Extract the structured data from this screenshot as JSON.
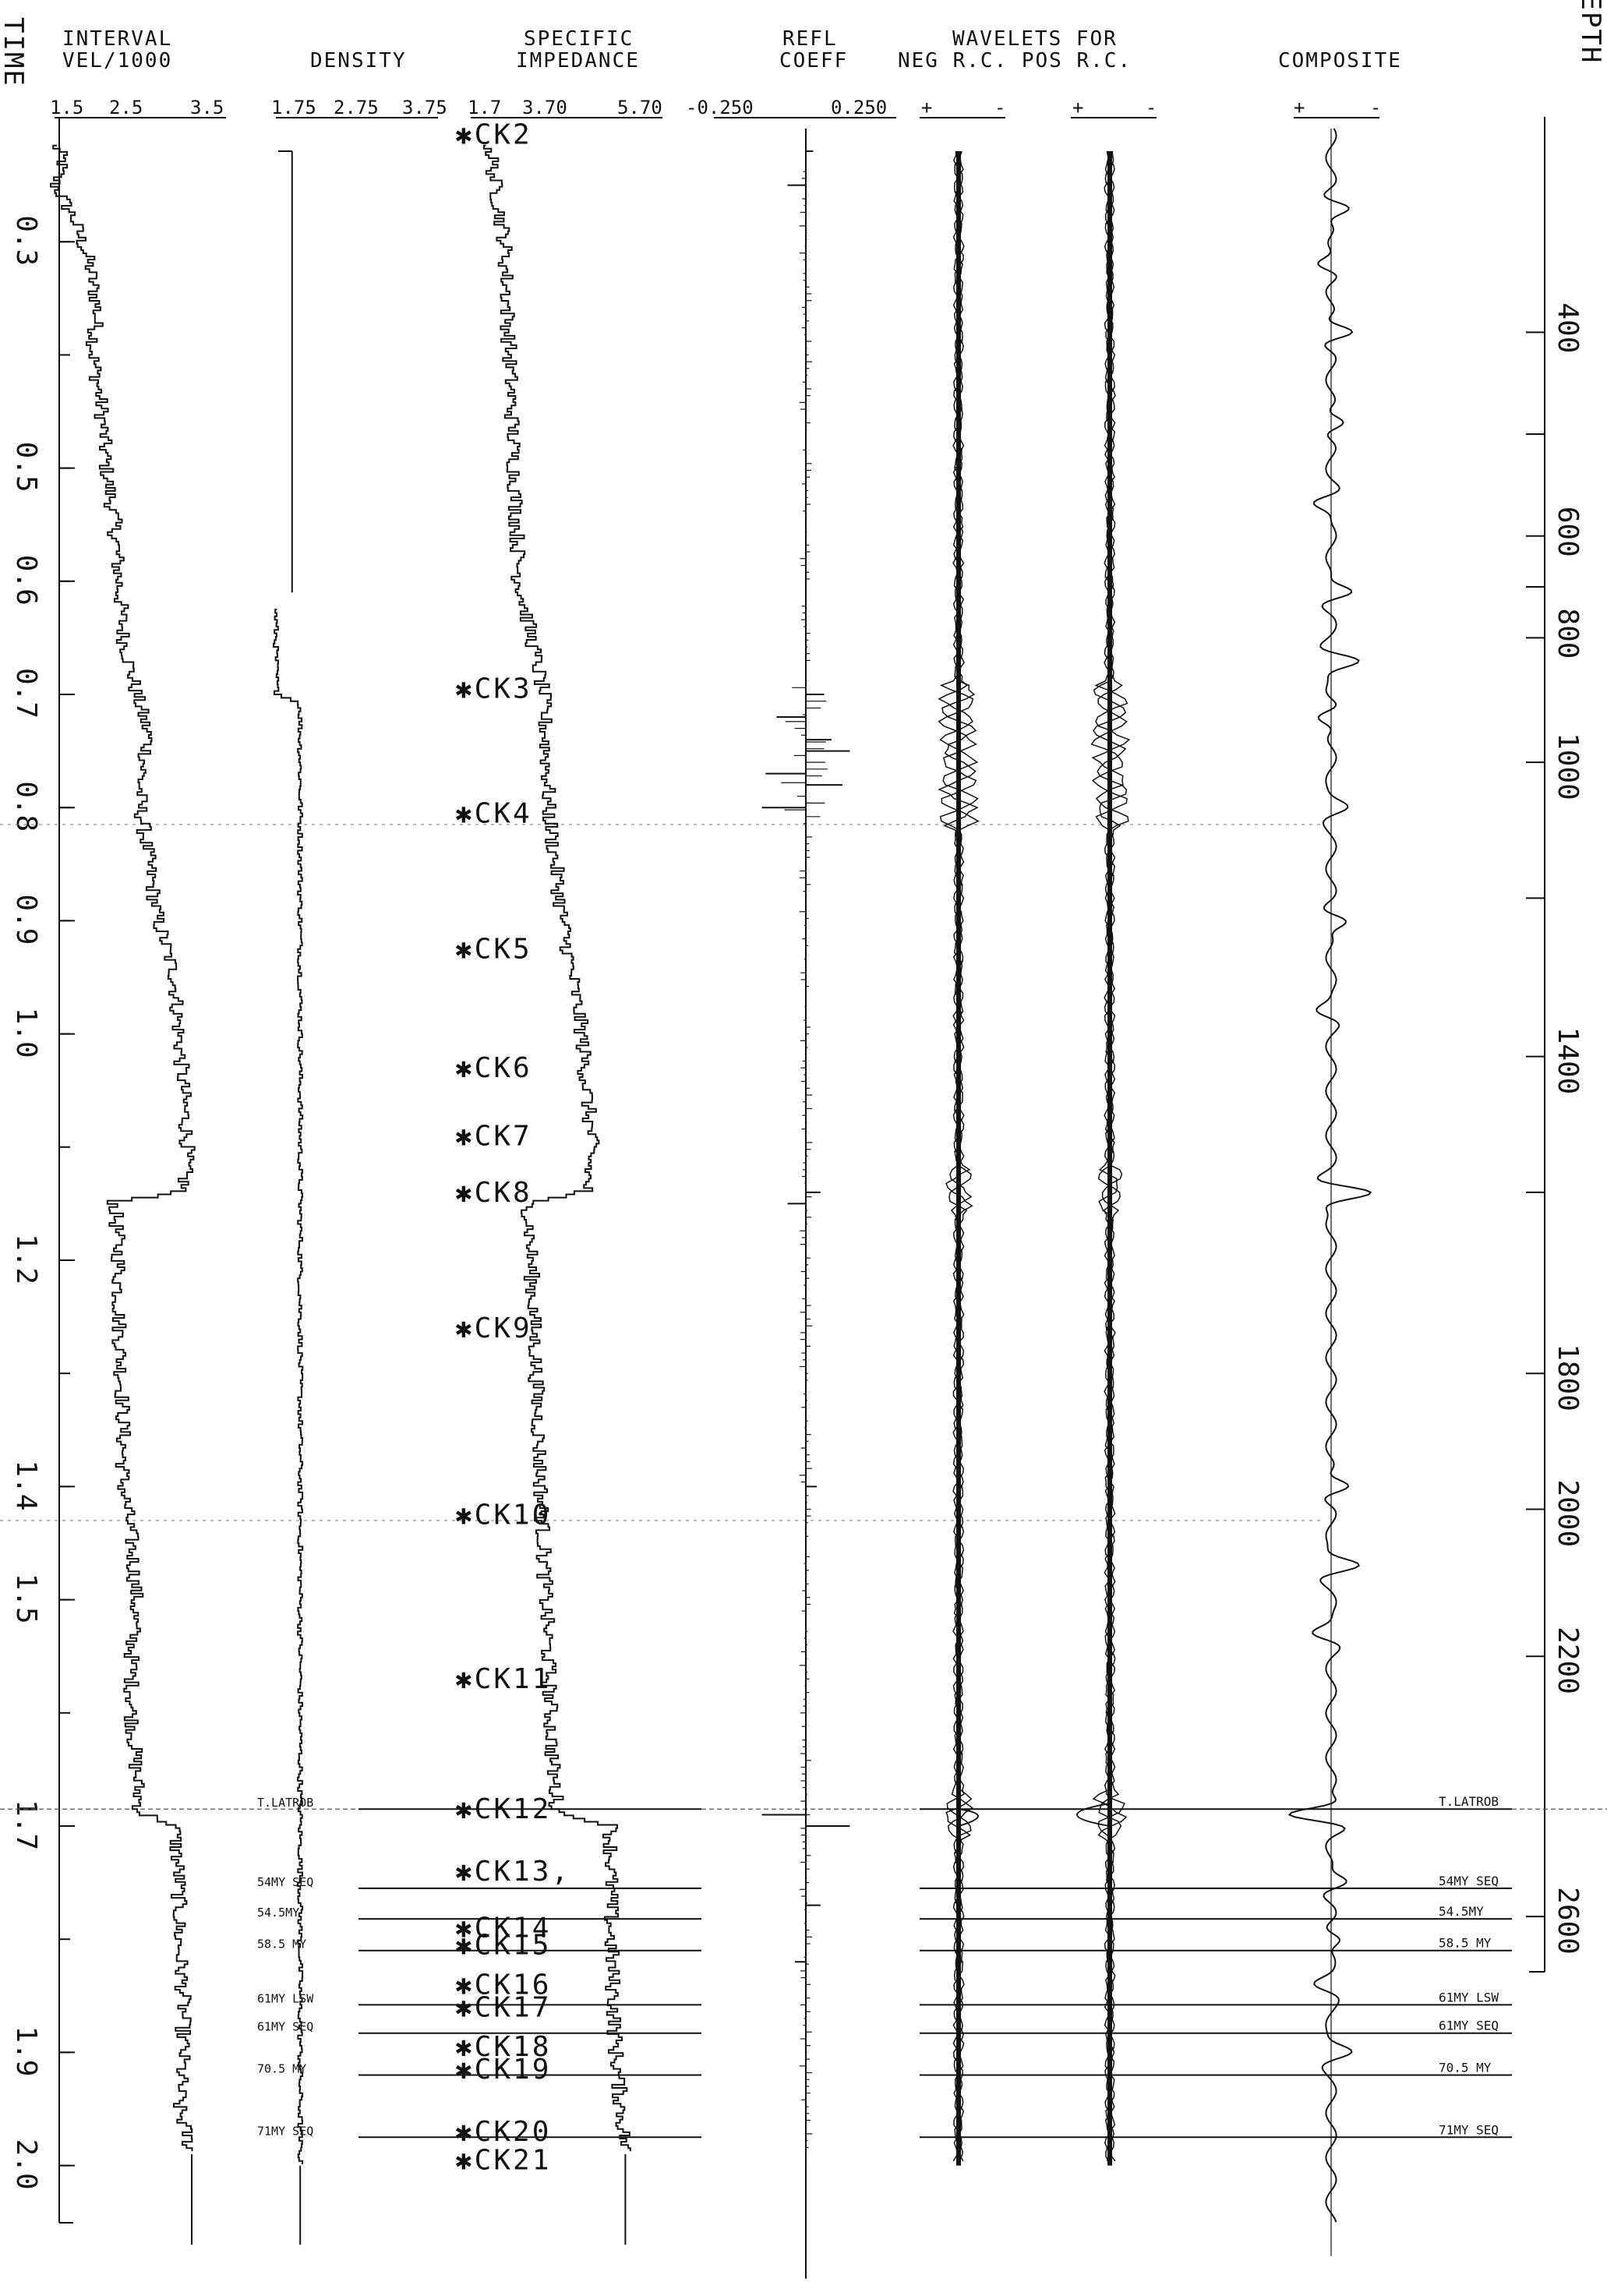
{
  "chart_data": {
    "type": "line",
    "headers": {
      "time_axis": "TIME",
      "depth_axis": "DEPTH",
      "interval_velocity": [
        "INTERVAL",
        "VEL/1000"
      ],
      "density": [
        "DENSITY"
      ],
      "specific_impedance": [
        "SPECIFIC",
        "IMPEDANCE"
      ],
      "reflection_coefficient": [
        "REFL",
        "COEFF"
      ],
      "wavelets": [
        "WAVELETS FOR",
        "NEG R.C.  POS R.C."
      ],
      "composite": [
        "COMPOSITE"
      ]
    },
    "scale_labels": {
      "interval_velocity": [
        "1.5",
        "2.5",
        "3.5"
      ],
      "density": [
        "1.75",
        "2.75",
        "3.75"
      ],
      "specific_impedance": [
        "1.7",
        "3.70",
        "5.70"
      ],
      "reflection_coefficient": [
        "-0.250",
        "0.250"
      ],
      "wavelet_polarity": [
        "+",
        "-",
        "+",
        "-",
        "+",
        "-"
      ]
    },
    "time_axis": {
      "ticks": [
        0.3,
        0.5,
        0.6,
        0.7,
        0.8,
        0.9,
        1.0,
        1.2,
        1.4,
        1.5,
        1.7,
        1.9,
        2.0
      ],
      "tick_labels": [
        "0.3",
        "0.5",
        "0.6",
        "0.7",
        "0.8",
        "0.9",
        "1.0",
        "1.2",
        "1.4",
        "1.5",
        "1.7",
        "1.9",
        "2.0"
      ],
      "range": [
        0.2,
        2.08
      ]
    },
    "depth_axis": {
      "labelled_ticks": [
        400,
        600,
        800,
        1000,
        1400,
        1800,
        2000,
        2200,
        2600
      ],
      "tick_labels": [
        "400",
        "600",
        "800",
        "1000",
        "1400",
        "1800",
        "2000",
        "2200",
        "2600"
      ],
      "time_of_depth": [
        0.2,
        0.38,
        0.47,
        0.56,
        0.65,
        0.76,
        0.88,
        1.02,
        1.14,
        1.3,
        1.42,
        1.55,
        1.66,
        1.84
      ],
      "depth_values": [
        200,
        400,
        500,
        600,
        800,
        1000,
        1200,
        1400,
        1600,
        1800,
        2000,
        2200,
        2400,
        2700
      ]
    },
    "checkshots": [
      {
        "label": "✱CK2",
        "time": 0.205
      },
      {
        "label": "✱CK3",
        "time": 0.695
      },
      {
        "label": "✱CK4",
        "time": 0.805
      },
      {
        "label": "✱CK5",
        "time": 0.925
      },
      {
        "label": "✱CK6",
        "time": 1.03
      },
      {
        "label": "✱CK7",
        "time": 1.09
      },
      {
        "label": "✱CK8",
        "time": 1.14
      },
      {
        "label": "✱CK9",
        "time": 1.26
      },
      {
        "label": "✱CK10",
        "time": 1.425
      },
      {
        "label": "✱CK11",
        "time": 1.57
      },
      {
        "label": "✱CK12",
        "time": 1.685
      },
      {
        "label": "✱CK13,",
        "time": 1.74
      },
      {
        "label": "✱CK14",
        "time": 1.79
      },
      {
        "label": "✱CK15",
        "time": 1.805
      },
      {
        "label": "✱CK16",
        "time": 1.84
      },
      {
        "label": "✱CK17",
        "time": 1.86
      },
      {
        "label": "✱CK18",
        "time": 1.895
      },
      {
        "label": "✱CK19",
        "time": 1.915
      },
      {
        "label": "✱CK20",
        "time": 1.97
      },
      {
        "label": "✱CK21",
        "time": 1.995
      }
    ],
    "horizons": [
      {
        "label": "T.LATROB",
        "time": 1.685
      },
      {
        "label": "54MY SEQ",
        "time": 1.755
      },
      {
        "label": "54.5MY",
        "time": 1.782
      },
      {
        "label": "58.5 MY",
        "time": 1.81
      },
      {
        "label": "61MY LSW",
        "time": 1.858
      },
      {
        "label": "61MY SEQ",
        "time": 1.883
      },
      {
        "label": "70.5 MY",
        "time": 1.92
      },
      {
        "label": "71MY SEQ",
        "time": 1.975
      }
    ],
    "interval_velocity": {
      "time": [
        0.215,
        0.23,
        0.25,
        0.28,
        0.32,
        0.36,
        0.4,
        0.45,
        0.5,
        0.55,
        0.6,
        0.65,
        0.7,
        0.74,
        0.78,
        0.8,
        0.85,
        0.9,
        0.95,
        1.0,
        1.05,
        1.1,
        1.14,
        1.15,
        1.2,
        1.25,
        1.3,
        1.35,
        1.4,
        1.45,
        1.5,
        1.55,
        1.6,
        1.65,
        1.69,
        1.7,
        1.75,
        1.8,
        1.85,
        1.9,
        1.95,
        1.99
      ],
      "value": [
        1.5,
        1.6,
        1.5,
        1.72,
        1.9,
        2.0,
        1.95,
        2.05,
        2.1,
        2.2,
        2.25,
        2.3,
        2.45,
        2.6,
        2.5,
        2.5,
        2.6,
        2.7,
        2.9,
        2.95,
        3.0,
        3.05,
        3.0,
        2.2,
        2.25,
        2.25,
        2.28,
        2.3,
        2.3,
        2.4,
        2.45,
        2.4,
        2.4,
        2.45,
        2.5,
        2.9,
        2.95,
        2.95,
        3.0,
        3.0,
        2.95,
        3.1
      ]
    },
    "density": {
      "time": [
        0.22,
        0.62,
        0.625,
        0.66,
        0.7,
        0.71,
        1.0,
        1.5,
        2.0
      ],
      "value": [
        1.95,
        1.95,
        1.75,
        1.75,
        1.76,
        2.05,
        2.05,
        2.05,
        2.05
      ]
    },
    "specific_impedance": {
      "time": [
        0.215,
        0.25,
        0.3,
        0.4,
        0.5,
        0.6,
        0.7,
        0.78,
        0.8,
        0.9,
        1.0,
        1.1,
        1.14,
        1.15,
        1.25,
        1.35,
        1.45,
        1.55,
        1.65,
        1.69,
        1.7,
        1.8,
        1.9,
        1.99
      ],
      "value": [
        2.1,
        2.2,
        2.4,
        2.5,
        2.6,
        2.7,
        3.2,
        3.3,
        3.3,
        3.6,
        4.0,
        4.2,
        4.1,
        2.9,
        3.0,
        3.1,
        3.2,
        3.3,
        3.4,
        3.5,
        4.6,
        4.6,
        4.7,
        4.9
      ]
    },
    "reflection_coefficient": {
      "time": [
        0.22,
        0.25,
        0.7,
        0.72,
        0.74,
        0.75,
        0.77,
        0.78,
        0.8,
        1.14,
        1.15,
        1.4,
        1.69,
        1.7,
        1.77,
        1.82
      ],
      "value": [
        0.02,
        -0.05,
        0.05,
        -0.08,
        0.07,
        0.12,
        -0.11,
        0.1,
        -0.12,
        0.04,
        -0.05,
        0.03,
        -0.12,
        0.12,
        0.04,
        -0.03
      ]
    },
    "composite_trace_events": {
      "time": [
        0.27,
        0.32,
        0.38,
        0.46,
        0.53,
        0.61,
        0.67,
        0.72,
        0.8,
        0.9,
        0.98,
        1.14,
        1.4,
        1.47,
        1.53,
        1.69,
        1.75,
        1.8,
        1.84,
        1.9
      ],
      "amplitude": [
        0.5,
        -0.4,
        0.6,
        0.4,
        -0.4,
        0.5,
        0.6,
        -0.4,
        0.3,
        0.4,
        -0.3,
        0.9,
        0.5,
        0.6,
        -0.4,
        -1.0,
        0.4,
        0.3,
        -0.3,
        0.4
      ]
    }
  }
}
